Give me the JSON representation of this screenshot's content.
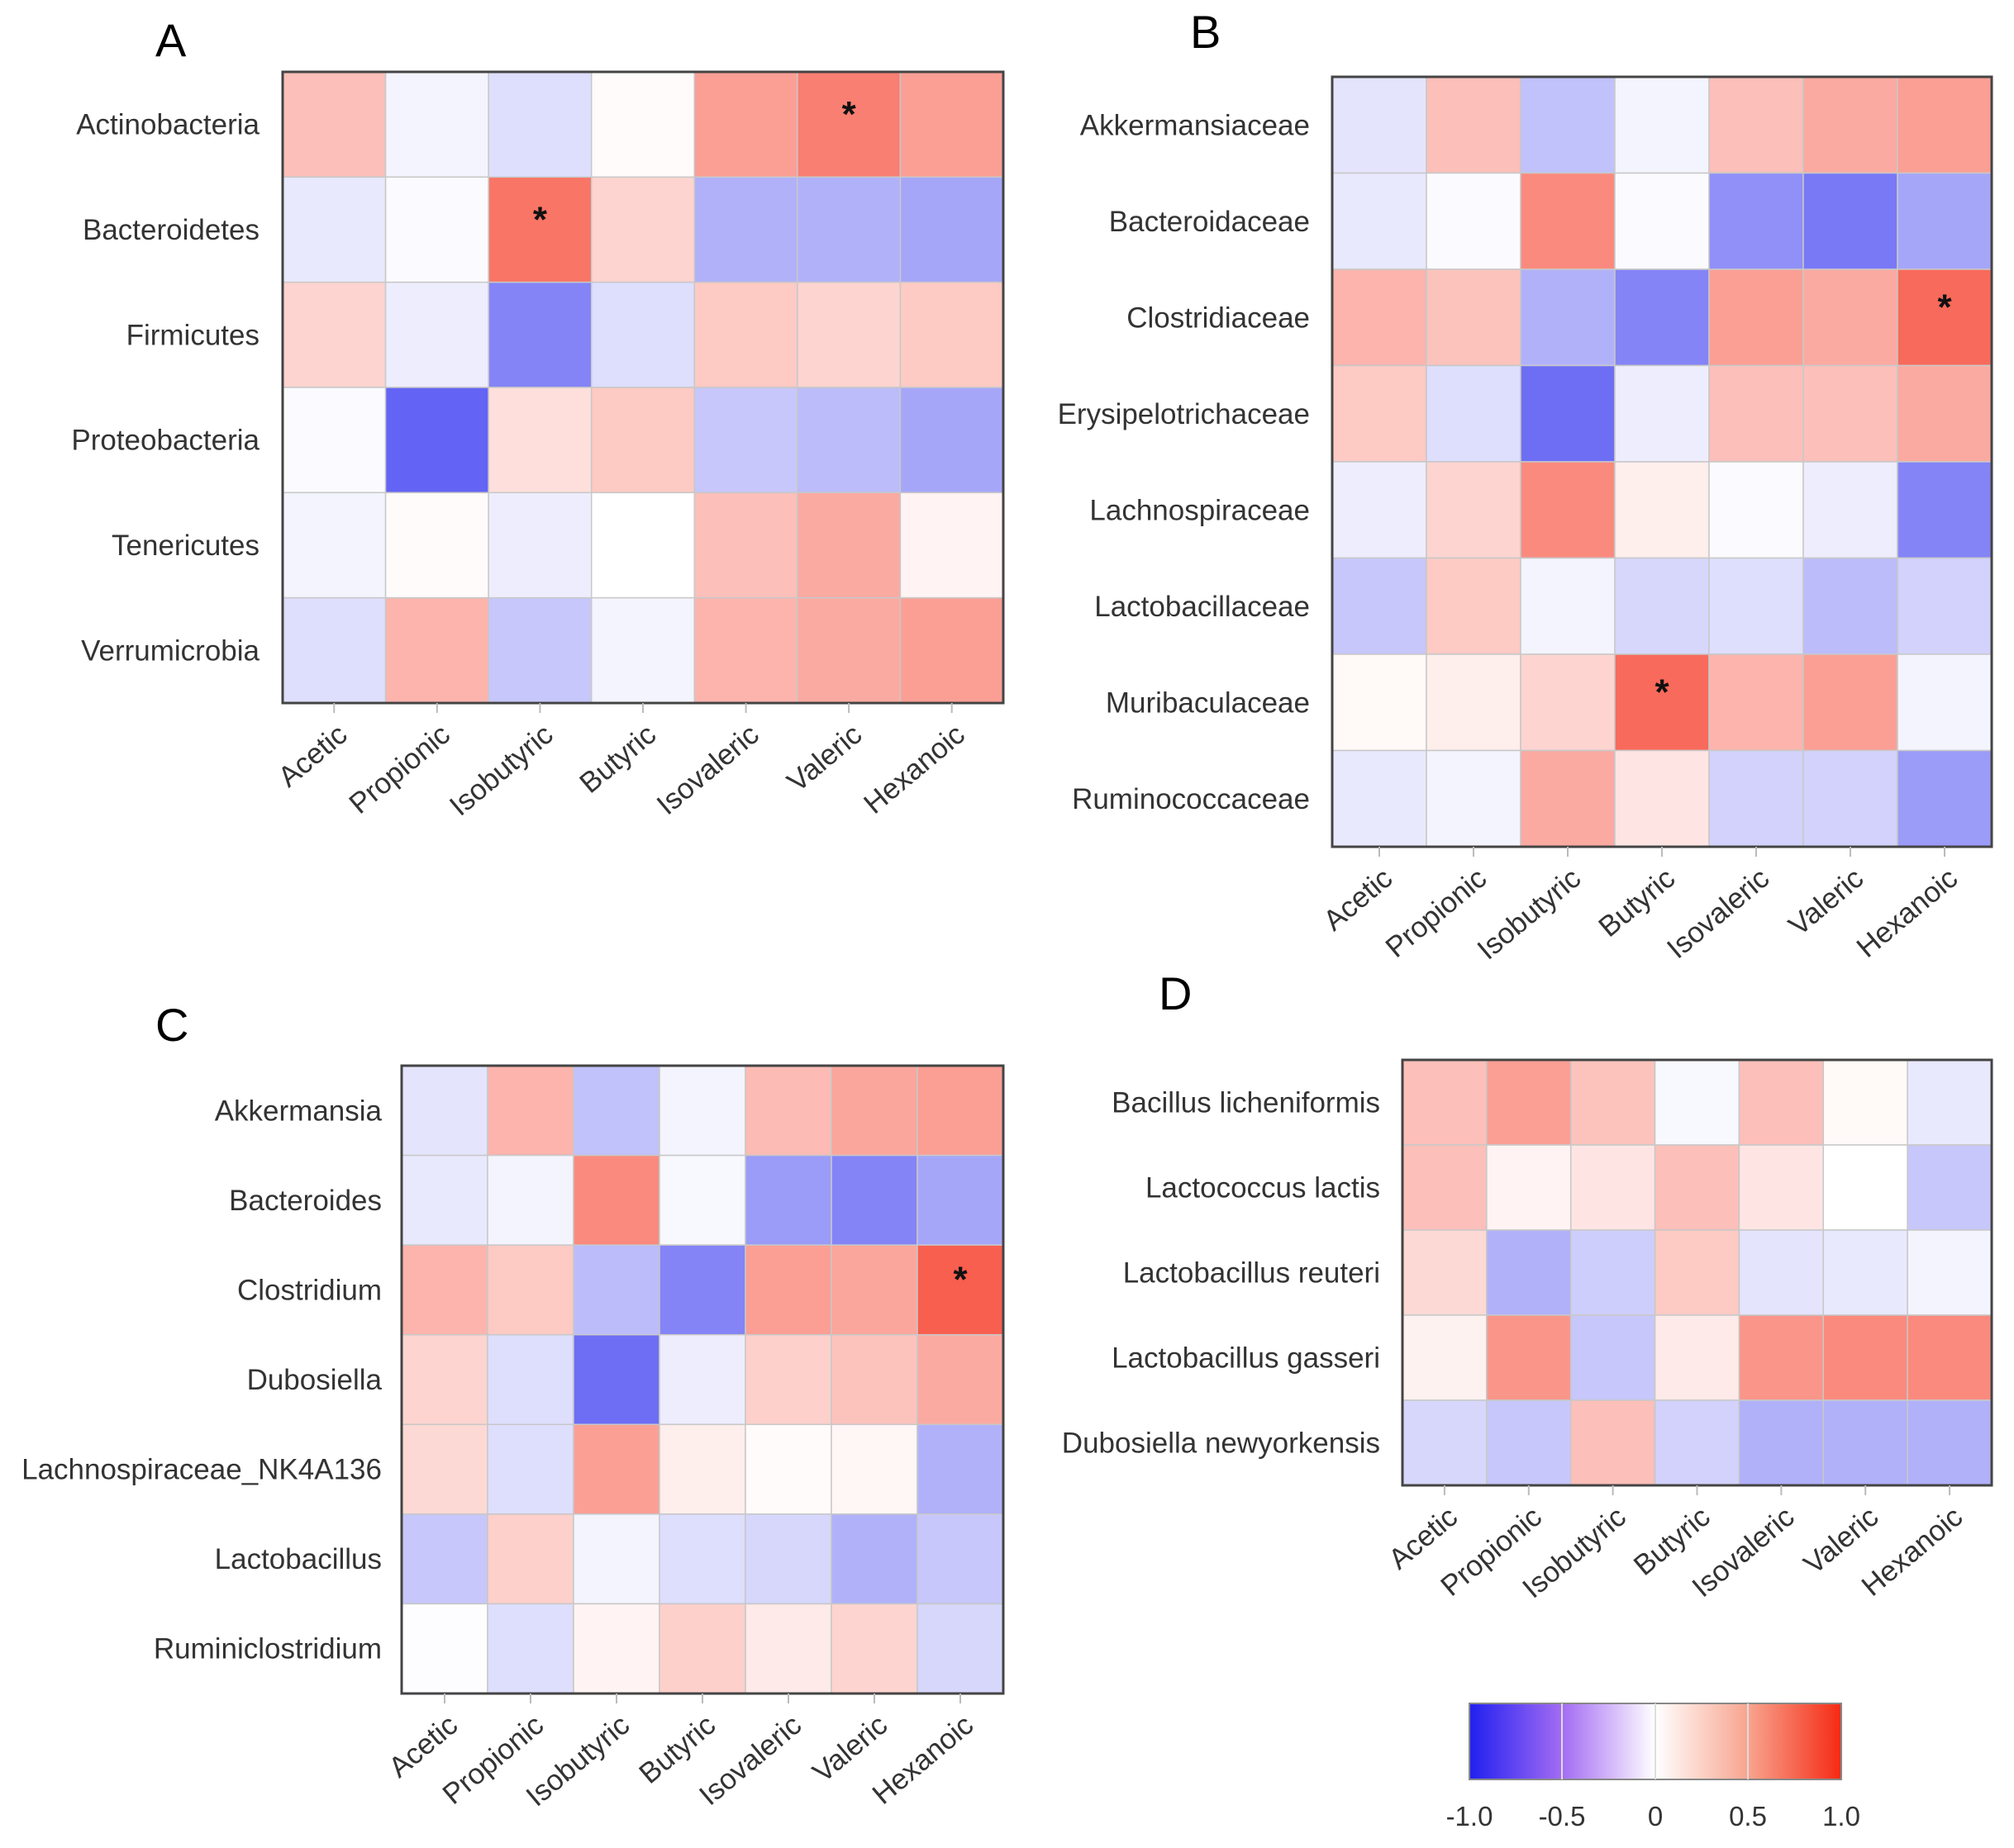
{
  "chart_data": [
    {
      "type": "heatmap",
      "panel": "A",
      "columns": [
        "Acetic",
        "Propionic",
        "Isobutyric",
        "Butyric",
        "Isovaleric",
        "Valeric",
        "Hexanoic"
      ],
      "rows": [
        "Actinobacteria",
        "Bacteroidetes",
        "Firmicutes",
        "Proteobacteria",
        "Tenericutes",
        "Verrumicrobia"
      ],
      "values": [
        [
          0.3,
          -0.05,
          -0.15,
          0.02,
          0.45,
          0.6,
          0.45
        ],
        [
          -0.1,
          -0.02,
          0.65,
          0.2,
          -0.35,
          -0.35,
          -0.4
        ],
        [
          0.2,
          -0.08,
          -0.55,
          -0.15,
          0.25,
          0.2,
          0.25
        ],
        [
          -0.02,
          -0.7,
          0.15,
          0.25,
          -0.25,
          -0.3,
          -0.4
        ],
        [
          -0.05,
          0.02,
          -0.08,
          0.0,
          0.3,
          0.4,
          0.05
        ],
        [
          -0.15,
          0.35,
          -0.25,
          -0.05,
          0.35,
          0.4,
          0.45
        ]
      ],
      "significant": [
        [
          0,
          5
        ],
        [
          1,
          2
        ]
      ],
      "significance_mark": "*"
    },
    {
      "type": "heatmap",
      "panel": "B",
      "columns": [
        "Acetic",
        "Propionic",
        "Isobutyric",
        "Butyric",
        "Isovaleric",
        "Valeric",
        "Hexanoic"
      ],
      "rows": [
        "Akkermansiaceae",
        "Bacteroidaceae",
        "Clostridiaceae",
        "Erysipelotrichaceae",
        "Lachnospiraceae",
        "Lactobacillaceae",
        "Muribaculaceae",
        "Ruminococcaceae"
      ],
      "values": [
        [
          -0.12,
          0.3,
          -0.28,
          -0.05,
          0.3,
          0.4,
          0.45
        ],
        [
          -0.1,
          -0.02,
          0.55,
          -0.02,
          -0.5,
          -0.6,
          -0.4
        ],
        [
          0.35,
          0.28,
          -0.35,
          -0.55,
          0.45,
          0.4,
          0.7
        ],
        [
          0.25,
          -0.15,
          -0.65,
          -0.08,
          0.3,
          0.3,
          0.4
        ],
        [
          -0.08,
          0.2,
          0.55,
          0.08,
          -0.02,
          -0.08,
          -0.55
        ],
        [
          -0.25,
          0.25,
          -0.05,
          -0.18,
          -0.15,
          -0.3,
          -0.2
        ],
        [
          0.03,
          0.08,
          0.2,
          0.7,
          0.35,
          0.45,
          -0.05
        ],
        [
          -0.1,
          -0.05,
          0.4,
          0.12,
          -0.2,
          -0.2,
          -0.45
        ]
      ],
      "significant": [
        [
          2,
          6
        ],
        [
          6,
          3
        ]
      ],
      "significance_mark": "*"
    },
    {
      "type": "heatmap",
      "panel": "C",
      "columns": [
        "Acetic",
        "Propionic",
        "Isobutyric",
        "Butyric",
        "Isovaleric",
        "Valeric",
        "Hexanoic"
      ],
      "rows": [
        "Akkermansia",
        "Bacteroides",
        "Clostridium",
        "Dubosiella",
        "Lachnospiraceae_NK4A136",
        "Lactobacillus",
        "Ruminiclostridium"
      ],
      "values": [
        [
          -0.12,
          0.35,
          -0.28,
          -0.05,
          0.32,
          0.42,
          0.45
        ],
        [
          -0.1,
          -0.05,
          0.55,
          -0.03,
          -0.45,
          -0.55,
          -0.4
        ],
        [
          0.35,
          0.25,
          -0.3,
          -0.55,
          0.45,
          0.42,
          0.75
        ],
        [
          0.2,
          -0.15,
          -0.65,
          -0.08,
          0.22,
          0.28,
          0.4
        ],
        [
          0.18,
          -0.15,
          0.45,
          0.08,
          0.02,
          0.04,
          -0.35
        ],
        [
          -0.25,
          0.22,
          -0.05,
          -0.15,
          -0.18,
          -0.35,
          -0.25
        ],
        [
          -0.01,
          -0.15,
          0.05,
          0.22,
          0.1,
          0.2,
          -0.18
        ]
      ],
      "significant": [
        [
          2,
          6
        ]
      ],
      "significance_mark": "*"
    },
    {
      "type": "heatmap",
      "panel": "D",
      "columns": [
        "Acetic",
        "Propionic",
        "Isobutyric",
        "Butyric",
        "Isovaleric",
        "Valeric",
        "Hexanoic"
      ],
      "rows": [
        "Bacillus licheniformis",
        "Lactococcus lactis",
        "Lactobacillus reuteri",
        "Lactobacillus gasseri",
        "Dubosiella newyorkensis"
      ],
      "values": [
        [
          0.3,
          0.45,
          0.28,
          -0.03,
          0.3,
          0.03,
          -0.1
        ],
        [
          0.3,
          0.05,
          0.12,
          0.3,
          0.12,
          0.0,
          -0.25
        ],
        [
          0.18,
          -0.35,
          -0.22,
          0.25,
          -0.12,
          -0.1,
          -0.05
        ],
        [
          0.06,
          0.5,
          -0.25,
          0.1,
          0.5,
          0.55,
          0.55
        ],
        [
          -0.18,
          -0.25,
          0.3,
          -0.2,
          -0.35,
          -0.35,
          -0.35
        ]
      ],
      "significant": [],
      "significance_mark": "*"
    }
  ],
  "colorbar": {
    "min": -1.0,
    "max": 1.0,
    "ticks": [
      "-1.0",
      "-0.5",
      "0",
      "0.5",
      "1.0"
    ],
    "colors": {
      "low": "#2020f0",
      "mid": "#ffffff",
      "high": "#f52a14"
    }
  },
  "colors": {
    "cell_border": "#c8c8c8",
    "frame": "#444444"
  }
}
